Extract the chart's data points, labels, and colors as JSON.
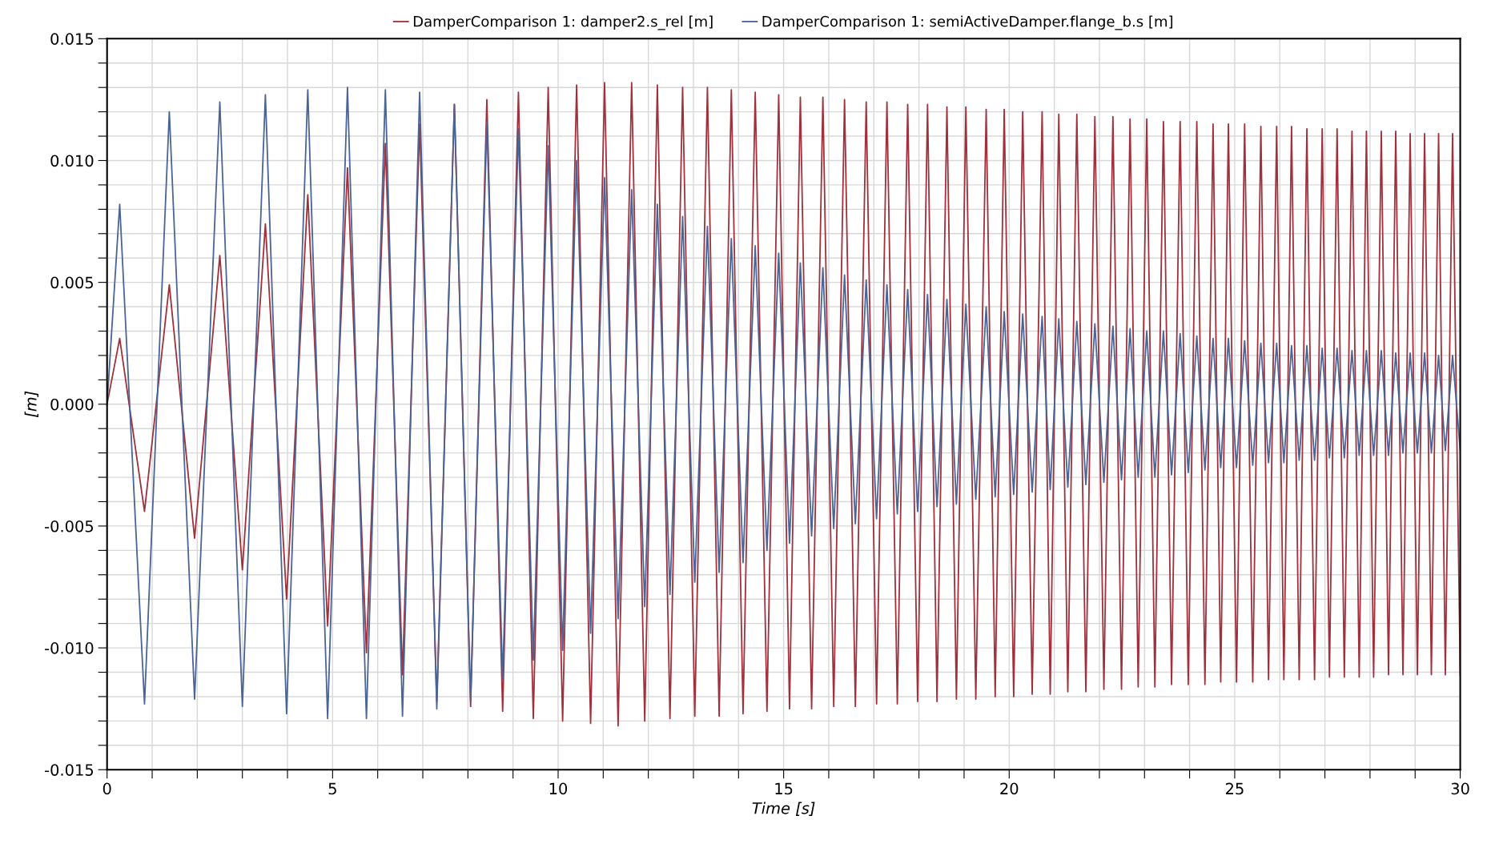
{
  "chart_data": {
    "type": "line",
    "xlabel": "Time [s]",
    "ylabel": "[m]",
    "legend": "top",
    "grid": true,
    "line_style": "solid",
    "marker": "none",
    "xlim": [
      0,
      30
    ],
    "ylim": [
      -0.015,
      0.015
    ],
    "xticks": [
      0,
      {
        "value": 1,
        "label": null
      },
      {
        "value": 2,
        "label": null
      },
      {
        "value": 3,
        "label": null
      },
      {
        "value": 4,
        "label": null
      },
      5,
      {
        "value": 6,
        "label": null
      },
      {
        "value": 7,
        "label": null
      },
      {
        "value": 8,
        "label": null
      },
      {
        "value": 9,
        "label": null
      },
      10,
      {
        "value": 11,
        "label": null
      },
      {
        "value": 12,
        "label": null
      },
      {
        "value": 13,
        "label": null
      },
      {
        "value": 14,
        "label": null
      },
      15,
      {
        "value": 16,
        "label": null
      },
      {
        "value": 17,
        "label": null
      },
      {
        "value": 18,
        "label": null
      },
      {
        "value": 19,
        "label": null
      },
      20,
      {
        "value": 21,
        "label": null
      },
      {
        "value": 22,
        "label": null
      },
      {
        "value": 23,
        "label": null
      },
      {
        "value": 24,
        "label": null
      },
      25,
      {
        "value": 26,
        "label": null
      },
      {
        "value": 27,
        "label": null
      },
      {
        "value": 28,
        "label": null
      },
      {
        "value": 29,
        "label": null
      },
      30
    ],
    "yticks": [
      {
        "value": -0.015,
        "label": "-0.015"
      },
      {
        "value": -0.014,
        "label": null
      },
      {
        "value": -0.013,
        "label": null
      },
      {
        "value": -0.012,
        "label": null
      },
      {
        "value": -0.011,
        "label": null
      },
      {
        "value": -0.01,
        "label": "-0.010"
      },
      {
        "value": -0.009,
        "label": null
      },
      {
        "value": -0.008,
        "label": null
      },
      {
        "value": -0.007,
        "label": null
      },
      {
        "value": -0.006,
        "label": null
      },
      {
        "value": -0.005,
        "label": "-0.005"
      },
      {
        "value": -0.004,
        "label": null
      },
      {
        "value": -0.003,
        "label": null
      },
      {
        "value": -0.002,
        "label": null
      },
      {
        "value": -0.001,
        "label": null
      },
      {
        "value": 0,
        "label": "0.000"
      },
      {
        "value": 0.001,
        "label": null
      },
      {
        "value": 0.002,
        "label": null
      },
      {
        "value": 0.003,
        "label": null
      },
      {
        "value": 0.004,
        "label": null
      },
      {
        "value": 0.005,
        "label": "0.005"
      },
      {
        "value": 0.006,
        "label": null
      },
      {
        "value": 0.007,
        "label": null
      },
      {
        "value": 0.008,
        "label": null
      },
      {
        "value": 0.009,
        "label": null
      },
      {
        "value": 0.01,
        "label": "0.010"
      },
      {
        "value": 0.011,
        "label": null
      },
      {
        "value": 0.012,
        "label": null
      },
      {
        "value": 0.013,
        "label": null
      },
      {
        "value": 0.014,
        "label": null
      },
      {
        "value": 0.015,
        "label": "0.015"
      }
    ],
    "x": [
      0,
      0.28,
      0.83,
      1.38,
      1.94,
      2.5,
      3.0,
      3.51,
      3.98,
      4.45,
      4.89,
      5.33,
      5.75,
      6.17,
      6.55,
      6.93,
      7.31,
      7.7,
      8.06,
      8.42,
      8.77,
      9.12,
      9.45,
      9.78,
      10.1,
      10.41,
      10.72,
      11.03,
      11.33,
      11.63,
      11.92,
      12.2,
      12.48,
      12.76,
      13.03,
      13.31,
      13.57,
      13.84,
      14.1,
      14.37,
      14.63,
      14.89,
      15.13,
      15.37,
      15.62,
      15.87,
      16.11,
      16.35,
      16.59,
      16.83,
      17.06,
      17.29,
      17.52,
      17.75,
      17.97,
      18.19,
      18.4,
      18.62,
      18.83,
      19.04,
      19.26,
      19.49,
      19.69,
      19.89,
      20.1,
      20.3,
      20.51,
      20.73,
      20.91,
      21.1,
      21.3,
      21.5,
      21.7,
      21.9,
      22.1,
      22.3,
      22.49,
      22.68,
      22.86,
      23.05,
      23.23,
      23.42,
      23.6,
      23.79,
      23.97,
      24.16,
      24.34,
      24.52,
      24.69,
      24.86,
      25.04,
      25.22,
      25.4,
      25.58,
      25.75,
      25.93,
      26.09,
      26.26,
      26.43,
      26.6,
      26.77,
      26.94,
      27.1,
      27.27,
      27.43,
      27.6,
      27.76,
      27.92,
      28.08,
      28.25,
      28.41,
      28.57,
      28.73,
      28.89,
      29.05,
      29.21,
      29.36,
      29.52,
      29.67,
      29.83,
      30
    ],
    "series": [
      {
        "name": "DamperComparison 1: damper2.s_rel [m]",
        "color": "#a0303c",
        "values": [
          0,
          0.0027,
          -0.0044,
          0.0049,
          -0.0055,
          0.0061,
          -0.0068,
          0.0074,
          -0.008,
          0.0086,
          -0.0091,
          0.0097,
          -0.0102,
          0.0107,
          -0.0111,
          0.0115,
          -0.0122,
          0.0123,
          -0.0124,
          0.0125,
          -0.0126,
          0.0128,
          -0.0129,
          0.013,
          -0.013,
          0.0131,
          -0.0131,
          0.0132,
          -0.0132,
          0.0132,
          -0.013,
          0.0131,
          -0.0129,
          0.013,
          -0.0128,
          0.013,
          -0.0128,
          0.0129,
          -0.0127,
          0.0128,
          -0.0126,
          0.0127,
          -0.0125,
          0.0126,
          -0.0125,
          0.0126,
          -0.0124,
          0.0125,
          -0.0124,
          0.0124,
          -0.0123,
          0.0124,
          -0.0123,
          0.0123,
          -0.0122,
          0.0123,
          -0.0122,
          0.0122,
          -0.0121,
          0.0122,
          -0.0121,
          0.0121,
          -0.012,
          0.0121,
          -0.012,
          0.012,
          -0.0119,
          0.012,
          -0.0119,
          0.0119,
          -0.0118,
          0.0119,
          -0.0118,
          0.0118,
          -0.0117,
          0.0118,
          -0.0117,
          0.0117,
          -0.0116,
          0.0117,
          -0.0116,
          0.0116,
          -0.0115,
          0.0116,
          -0.0115,
          0.0116,
          -0.0115,
          0.0115,
          -0.0114,
          0.0115,
          -0.0114,
          0.0115,
          -0.0114,
          0.0114,
          -0.0113,
          0.0114,
          -0.0113,
          0.0114,
          -0.0113,
          0.0113,
          -0.0113,
          0.0113,
          -0.0112,
          0.0113,
          -0.0112,
          0.0112,
          -0.0112,
          0.0112,
          -0.0112,
          0.0112,
          -0.0111,
          0.0112,
          -0.0111,
          0.0111,
          -0.0111,
          0.0111,
          -0.0111,
          0.0111,
          -0.0111,
          0.0111,
          -0.0111
        ]
      },
      {
        "name": "DamperComparison 1: semiActiveDamper.flange_b.s [m]",
        "color": "#4a6496",
        "values": [
          0,
          0.0082,
          -0.0123,
          0.012,
          -0.0121,
          0.0124,
          -0.0124,
          0.0127,
          -0.0127,
          0.0129,
          -0.0129,
          0.013,
          -0.0129,
          0.0129,
          -0.0128,
          0.0128,
          -0.0125,
          0.0123,
          -0.0122,
          0.0116,
          -0.0113,
          0.0113,
          -0.0105,
          0.0106,
          -0.0101,
          0.01,
          -0.0094,
          0.0093,
          -0.0088,
          0.0088,
          -0.0083,
          0.0082,
          -0.0078,
          0.0077,
          -0.0073,
          0.0073,
          -0.0069,
          0.0068,
          -0.0065,
          0.0065,
          -0.006,
          0.0062,
          -0.0057,
          0.0058,
          -0.0054,
          0.0056,
          -0.0051,
          0.0053,
          -0.0049,
          0.0051,
          -0.0047,
          0.0049,
          -0.0045,
          0.0047,
          -0.0044,
          0.0045,
          -0.0042,
          0.0043,
          -0.0041,
          0.0041,
          -0.0039,
          0.004,
          -0.0038,
          0.0038,
          -0.0037,
          0.0037,
          -0.0036,
          0.0036,
          -0.0035,
          0.0035,
          -0.0034,
          0.0034,
          -0.0033,
          0.0033,
          -0.0032,
          0.0032,
          -0.0031,
          0.0031,
          -0.003,
          0.003,
          -0.003,
          0.003,
          -0.0029,
          0.0029,
          -0.0028,
          0.0028,
          -0.0027,
          0.0027,
          -0.0026,
          0.0027,
          -0.0026,
          0.0026,
          -0.0025,
          0.0025,
          -0.0024,
          0.0025,
          -0.0024,
          0.0024,
          -0.0023,
          0.0024,
          -0.0023,
          0.0023,
          -0.0022,
          0.0023,
          -0.0022,
          0.0022,
          -0.0021,
          0.0022,
          -0.0021,
          0.0022,
          -0.0021,
          0.0021,
          -0.002,
          0.0021,
          -0.002,
          0.0021,
          -0.002,
          0.002,
          -0.0019,
          0.002,
          -0.0019
        ]
      }
    ]
  }
}
